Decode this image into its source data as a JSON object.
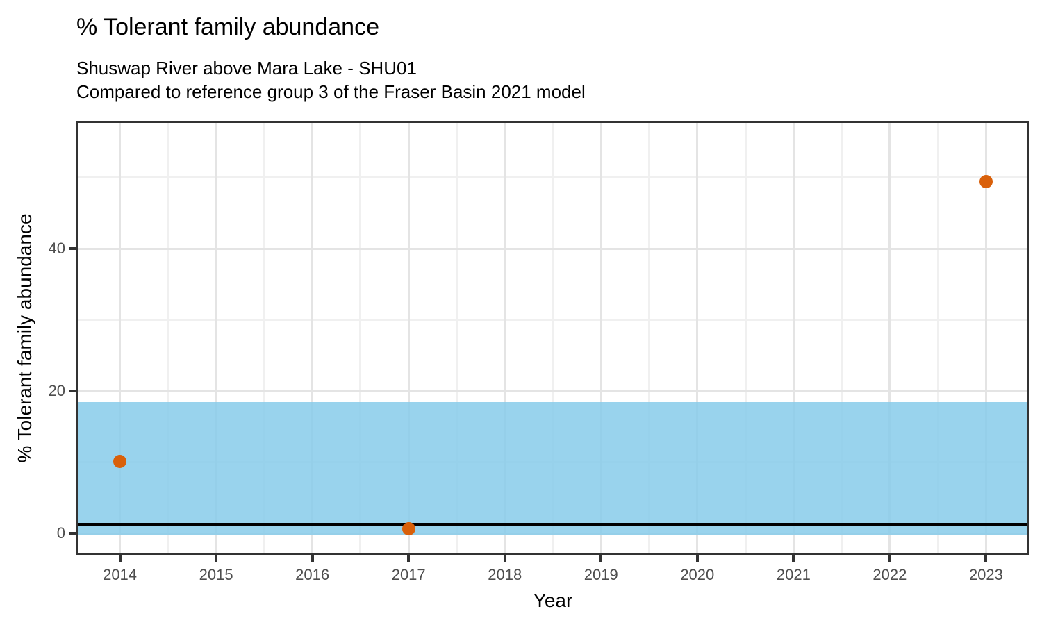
{
  "page": {
    "background_color": "#ffffff"
  },
  "header": {
    "title": "% Tolerant family abundance",
    "subtitle_line1": "Shuswap River above Mara Lake - SHU01",
    "subtitle_line2": "Compared to reference group 3 of the Fraser Basin 2021 model"
  },
  "chart_data": {
    "type": "scatter",
    "title": "% Tolerant family abundance",
    "subtitle": [
      "Shuswap River above Mara Lake - SHU01",
      "Compared to reference group 3 of the Fraser Basin 2021 model"
    ],
    "xlabel": "Year",
    "ylabel": "% Tolerant family abundance",
    "x_tick_labels": [
      "2014",
      "2015",
      "2016",
      "2017",
      "2018",
      "2019",
      "2020",
      "2021",
      "2022",
      "2023"
    ],
    "x_ticks": [
      2014,
      2015,
      2016,
      2017,
      2018,
      2019,
      2020,
      2021,
      2022,
      2023
    ],
    "x_minor_ticks": [
      2014.5,
      2015.5,
      2016.5,
      2017.5,
      2018.5,
      2019.5,
      2020.5,
      2021.5,
      2022.5
    ],
    "y_tick_labels": [
      "0",
      "20",
      "40"
    ],
    "y_ticks": [
      0,
      20,
      40
    ],
    "y_minor_ticks": [
      10,
      30,
      50
    ],
    "xlim": [
      2013.57,
      2023.43
    ],
    "ylim": [
      -2.73,
      57.66
    ],
    "grid": true,
    "legend_position": "none",
    "points": [
      {
        "x": 2014,
        "y": 10.1
      },
      {
        "x": 2017,
        "y": 0.6
      },
      {
        "x": 2023,
        "y": 49.4
      }
    ],
    "reference_band": {
      "lower": -0.2,
      "upper": 18.4,
      "color": "#87CBEA",
      "opacity": 0.85
    },
    "reference_line": {
      "y": 1.3,
      "color": "#000000",
      "thickness": 4
    },
    "point_color": "#D9600A",
    "point_radius": 9.5,
    "panel_border_color": "#333333",
    "major_grid_color": "#e4e4e4",
    "minor_grid_color": "#f0f0f0",
    "tick_label_color": "#4d4d4d"
  }
}
